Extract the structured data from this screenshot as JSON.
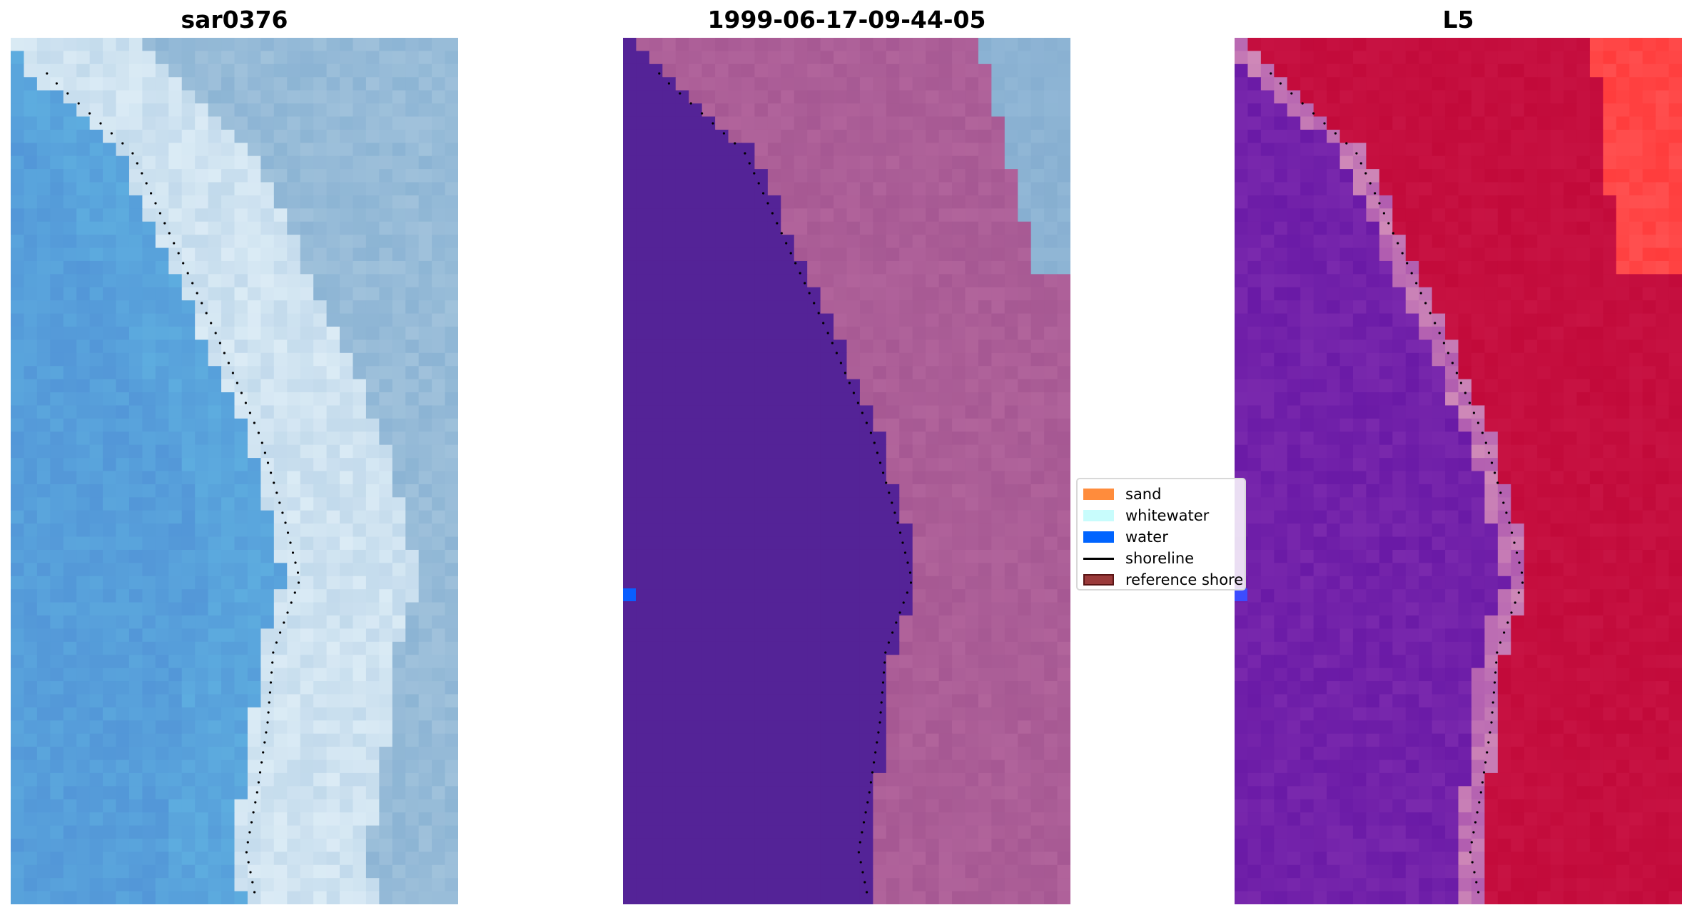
{
  "panels": [
    {
      "id": "rgb",
      "title": "sar0376",
      "kind": "rgb"
    },
    {
      "id": "classification",
      "title": "1999-06-17-09-44-05",
      "kind": "classification"
    },
    {
      "id": "mndwi",
      "title": "L5",
      "kind": "index"
    }
  ],
  "legend": {
    "items": [
      {
        "label": "sand",
        "type": "patch",
        "color": "#ff8c3c"
      },
      {
        "label": "whitewater",
        "type": "patch",
        "color": "#c8fcfc"
      },
      {
        "label": "water",
        "type": "patch",
        "color": "#0064ff"
      },
      {
        "label": "shoreline",
        "type": "line",
        "color": "#000000"
      },
      {
        "label": "reference shoreline",
        "type": "patch",
        "color": "#9a3a3a"
      }
    ]
  },
  "colors": {
    "classification_water": "#542397",
    "classification_land": "#a0528e",
    "classification_cloud": "#86aed0",
    "water_marker": "#0a5eff",
    "mndwi_low": "#6a1aa6",
    "mndwi_high": "#c20a3a",
    "mndwi_peak": "#ff3c3c",
    "rgb_water": "#4e8cd4",
    "rgb_foam": "#e2f0f8",
    "rgb_land": "#8cb4d4"
  }
}
